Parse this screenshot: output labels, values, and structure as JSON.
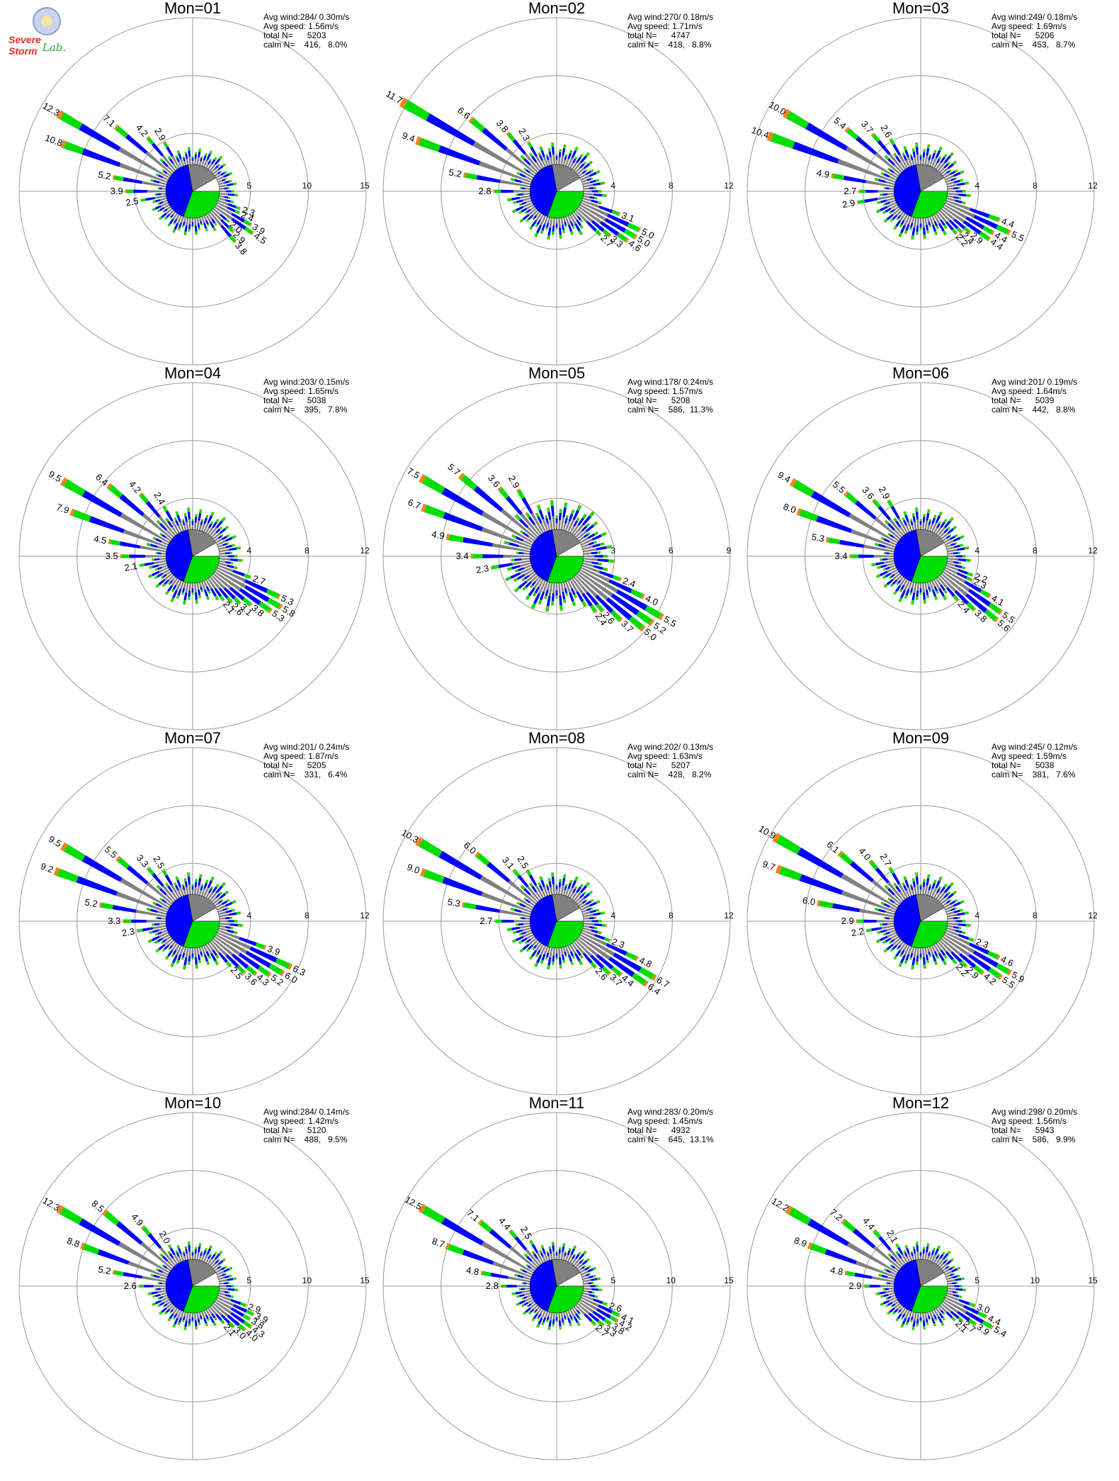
{
  "logo": {
    "seal_icon": "university-seal-icon",
    "line1": "Severe Storm",
    "line2": "Lab."
  },
  "colors": {
    "calm": "#808080",
    "blue": "#0000ff",
    "green": "#00dd00",
    "orange": "#ff8020",
    "grid": "#999999"
  },
  "chart_data": [
    {
      "type": "windrose",
      "title": "Mon=01",
      "avg_wind": "Avg wind:284/ 0.30m/s",
      "avg_speed": "Avg speed: 1.56m/s",
      "total": "total N=      5203",
      "calm": "calm N=    416,   8.0%",
      "rings": [
        "5",
        "10",
        "15"
      ],
      "rmax": 15,
      "bar_labels": [
        "12.3",
        "10.8",
        "7.1",
        "5.2",
        "4.2",
        "3.9",
        "2.9",
        "2.5",
        "2.3",
        "2.4",
        "3.9",
        "4.5",
        "2.0",
        "2.9",
        "3.8"
      ]
    },
    {
      "type": "windrose",
      "title": "Mon=02",
      "avg_wind": "Avg wind:270/ 0.18m/s",
      "avg_speed": "Avg speed: 1.71m/s",
      "total": "total N=      4747",
      "calm": "calm N=    418,   8.8%",
      "rings": [
        "4",
        "8",
        "12"
      ],
      "rmax": 12,
      "bar_labels": [
        "11.7",
        "9.4",
        "6.6",
        "5.2",
        "3.8",
        "2.8",
        "2.3",
        "3.1",
        "5.0",
        "5.0",
        "4.6",
        "3.3",
        "2.7"
      ]
    },
    {
      "type": "windrose",
      "title": "Mon=03",
      "avg_wind": "Avg wind:249/ 0.18m/s",
      "avg_speed": "Avg speed: 1.69m/s",
      "total": "total N=      5206",
      "calm": "calm N=    453,   8.7%",
      "rings": [
        "4",
        "8",
        "12"
      ],
      "rmax": 12,
      "bar_labels": [
        "10.0",
        "10.4",
        "5.4",
        "4.9",
        "3.7",
        "2.7",
        "2.6",
        "2.9",
        "4.4",
        "5.5",
        "4.4",
        "4.4",
        "2.9",
        "2.4",
        "2.2"
      ]
    },
    {
      "type": "windrose",
      "title": "Mon=04",
      "avg_wind": "Avg wind:203/ 0.15m/s",
      "avg_speed": "Avg speed: 1.65m/s",
      "total": "total N=      5038",
      "calm": "calm N=    395,   7.8%",
      "rings": [
        "4",
        "8",
        "12"
      ],
      "rmax": 12,
      "bar_labels": [
        "9.5",
        "7.9",
        "6.4",
        "4.5",
        "4.2",
        "3.5",
        "2.4",
        "2.1",
        "2.7",
        "5.3",
        "5.8",
        "5.3",
        "3.8",
        "3.1",
        "2.6",
        "2.1"
      ]
    },
    {
      "type": "windrose",
      "title": "Mon=05",
      "avg_wind": "Avg wind:178/ 0.24m/s",
      "avg_speed": "Avg speed: 1.57m/s",
      "total": "total N=      5208",
      "calm": "calm N=    586,  11.3%",
      "rings": [
        "3",
        "6",
        "9"
      ],
      "rmax": 9,
      "bar_labels": [
        "7.5",
        "6.7",
        "5.7",
        "4.9",
        "3.6",
        "3.4",
        "2.9",
        "2.3",
        "2.4",
        "4.0",
        "5.5",
        "5.2",
        "5.0",
        "3.7",
        "2.6",
        "2.4"
      ]
    },
    {
      "type": "windrose",
      "title": "Mon=06",
      "avg_wind": "Avg wind:201/ 0.19m/s",
      "avg_speed": "Avg speed: 1.64m/s",
      "total": "total N=      5039",
      "calm": "calm N=    442,   8.8%",
      "rings": [
        "4",
        "8",
        "12"
      ],
      "rmax": 12,
      "bar_labels": [
        "9.4",
        "8.0",
        "5.5",
        "5.3",
        "3.6",
        "3.4",
        "2.9",
        "2.2",
        "2.3",
        "4.1",
        "5.5",
        "5.6",
        "3.8",
        "2.4"
      ]
    },
    {
      "type": "windrose",
      "title": "Mon=07",
      "avg_wind": "Avg wind:201/ 0.24m/s",
      "avg_speed": "Avg speed: 1.87m/s",
      "total": "total N=      5205",
      "calm": "calm N=    331,   6.4%",
      "rings": [
        "4",
        "8",
        "12"
      ],
      "rmax": 12,
      "bar_labels": [
        "9.5",
        "9.2",
        "5.5",
        "5.2",
        "3.3",
        "3.3",
        "2.5",
        "2.3",
        "3.9",
        "6.3",
        "6.0",
        "5.2",
        "4.3",
        "3.6",
        "2.5"
      ]
    },
    {
      "type": "windrose",
      "title": "Mon=08",
      "avg_wind": "Avg wind:202/ 0.13m/s",
      "avg_speed": "Avg speed: 1.63m/s",
      "total": "total N=      5207",
      "calm": "calm N=    428,   8.2%",
      "rings": [
        "4",
        "8",
        "12"
      ],
      "rmax": 12,
      "bar_labels": [
        "10.3",
        "9.0",
        "6.0",
        "5.3",
        "3.1",
        "2.7",
        "2.5",
        "2.3",
        "4.8",
        "6.7",
        "6.4",
        "4.4",
        "3.7",
        "2.6"
      ]
    },
    {
      "type": "windrose",
      "title": "Mon=09",
      "avg_wind": "Avg wind:245/ 0.12m/s",
      "avg_speed": "Avg speed: 1.59m/s",
      "total": "total N=      5038",
      "calm": "calm N=    381,   7.6%",
      "rings": [
        "4",
        "8",
        "12"
      ],
      "rmax": 12,
      "bar_labels": [
        "10.9",
        "9.7",
        "6.1",
        "6.0",
        "4.0",
        "2.9",
        "2.7",
        "2.2",
        "2.3",
        "4.6",
        "5.9",
        "5.5",
        "4.2",
        "2.9",
        "2.2"
      ]
    },
    {
      "type": "windrose",
      "title": "Mon=10",
      "avg_wind": "Avg wind:284/ 0.14m/s",
      "avg_speed": "Avg speed: 1.42m/s",
      "total": "total N=      5120",
      "calm": "calm N=    488,   9.5%",
      "rings": [
        "5",
        "10",
        "15"
      ],
      "rmax": 15,
      "bar_labels": [
        "12.3",
        "8.8",
        "8.5",
        "5.2",
        "4.9",
        "2.6",
        "2.0",
        "2.9",
        "3.9",
        "3.8",
        "4.3",
        "4.0",
        "3.0",
        "2.1"
      ]
    },
    {
      "type": "windrose",
      "title": "Mon=11",
      "avg_wind": "Avg wind:283/ 0.20m/s",
      "avg_speed": "Avg speed: 1.45m/s",
      "total": "total N=      4932",
      "calm": "calm N=    645,  13.1%",
      "rings": [
        "5",
        "10",
        "15"
      ],
      "rmax": 15,
      "bar_labels": [
        "12.5",
        "8.7",
        "7.1",
        "4.8",
        "4.4",
        "2.8",
        "2.5",
        "2.6",
        "4.1",
        "4.2",
        "3.8",
        "3.3",
        "2.7"
      ]
    },
    {
      "type": "windrose",
      "title": "Mon=12",
      "avg_wind": "Avg wind:298/ 0.20m/s",
      "avg_speed": "Avg speed: 1.56m/s",
      "total": "total N=      5943",
      "calm": "calm N=    586,   9.9%",
      "rings": [
        "5",
        "10",
        "15"
      ],
      "rmax": 15,
      "bar_labels": [
        "12.2",
        "8.9",
        "7.2",
        "4.8",
        "4.4",
        "2.9",
        "2.1",
        "3.0",
        "4.4",
        "5.4",
        "3.9",
        "2.7",
        "2.1"
      ]
    }
  ]
}
